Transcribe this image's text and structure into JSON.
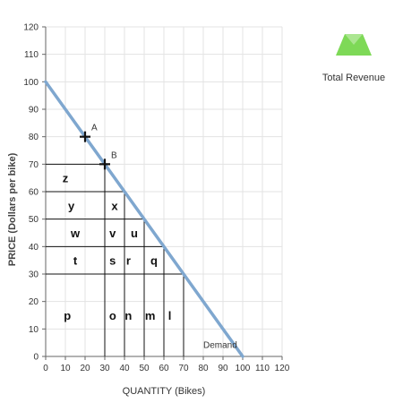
{
  "legend": {
    "label": "Total Revenue",
    "color": "#7ed957",
    "icon": "green-trapezoid-marker-icon"
  },
  "chart_data": {
    "type": "line",
    "xlabel": "QUANTITY (Bikes)",
    "ylabel": "PRICE (Dollars per bike)",
    "xlim": [
      0,
      120
    ],
    "ylim": [
      0,
      120
    ],
    "x_ticks": [
      0,
      10,
      20,
      30,
      40,
      50,
      60,
      70,
      80,
      90,
      100,
      110,
      120
    ],
    "y_ticks": [
      0,
      10,
      20,
      30,
      40,
      50,
      60,
      70,
      80,
      90,
      100,
      110,
      120
    ],
    "grid": true,
    "series": [
      {
        "name": "Demand",
        "color": "#7fa7cf",
        "x": [
          0,
          100
        ],
        "y": [
          100,
          0
        ]
      }
    ],
    "points": [
      {
        "label": "A",
        "x": 20,
        "y": 80
      },
      {
        "label": "B",
        "x": 30,
        "y": 70
      }
    ],
    "region_lines": {
      "hlines": [
        {
          "y": 70,
          "x0": 0,
          "x1": 30
        },
        {
          "y": 60,
          "x0": 0,
          "x1": 40
        },
        {
          "y": 50,
          "x0": 0,
          "x1": 50
        },
        {
          "y": 40,
          "x0": 0,
          "x1": 60
        },
        {
          "y": 30,
          "x0": 0,
          "x1": 70
        }
      ],
      "vlines": [
        {
          "x": 30,
          "y0": 0,
          "y1": 70
        },
        {
          "x": 40,
          "y0": 0,
          "y1": 60
        },
        {
          "x": 50,
          "y0": 0,
          "y1": 50
        },
        {
          "x": 60,
          "y0": 0,
          "y1": 40
        },
        {
          "x": 70,
          "y0": 0,
          "y1": 30
        }
      ]
    },
    "region_labels": [
      {
        "text": "z",
        "x": 10,
        "y": 65
      },
      {
        "text": "y",
        "x": 13,
        "y": 55
      },
      {
        "text": "x",
        "x": 35,
        "y": 55
      },
      {
        "text": "w",
        "x": 15,
        "y": 45
      },
      {
        "text": "v",
        "x": 34,
        "y": 45
      },
      {
        "text": "u",
        "x": 45,
        "y": 45
      },
      {
        "text": "t",
        "x": 15,
        "y": 35
      },
      {
        "text": "s",
        "x": 34,
        "y": 35
      },
      {
        "text": "r",
        "x": 42,
        "y": 35
      },
      {
        "text": "q",
        "x": 55,
        "y": 35
      },
      {
        "text": "p",
        "x": 11,
        "y": 15
      },
      {
        "text": "o",
        "x": 34,
        "y": 15
      },
      {
        "text": "n",
        "x": 42,
        "y": 15
      },
      {
        "text": "m",
        "x": 53,
        "y": 15
      },
      {
        "text": "l",
        "x": 63,
        "y": 15
      }
    ],
    "annotations": [
      {
        "text": "Demand",
        "x": 80,
        "y": 4
      }
    ]
  }
}
